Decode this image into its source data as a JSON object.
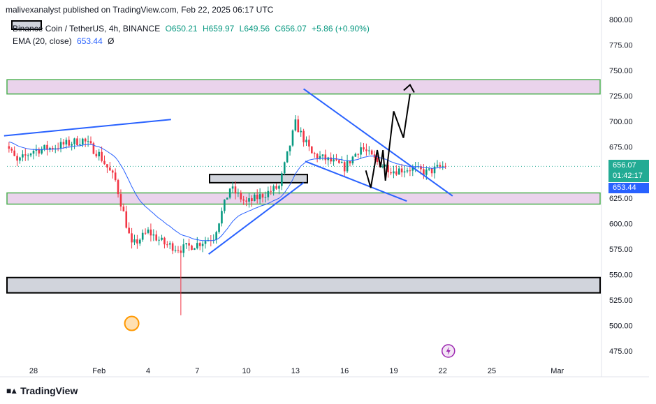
{
  "header": {
    "publisher_line": "malivexanalyst published on TradingView.com, Feb 22, 2025 06:17 UTC"
  },
  "legend": {
    "symbol": "Binance Coin / TetherUS, 4h, BINANCE",
    "open": "O650.21",
    "high": "H659.97",
    "low": "L649.56",
    "close": "C656.07",
    "change": "+5.86 (+0.90%)",
    "ema_label": "EMA (20, close)",
    "ema_value": "653.44",
    "ema_extra": "Ø"
  },
  "price_labels": {
    "last_price": "656.07",
    "countdown": "01:42:17",
    "ema_price": "653.44"
  },
  "footer": {
    "brand": "TradingView"
  },
  "colors": {
    "up": "#089981",
    "down": "#f23645",
    "ema": "#2962ff",
    "trendline": "#2962ff",
    "zone_fill": "#ead3ec",
    "zone_border": "#4caf50",
    "support_fill": "#d1d4dc",
    "projection": "#000000",
    "marker": "#ff9800",
    "flash": "#9c27b0"
  },
  "chart_data": {
    "type": "candlestick",
    "title": "Binance Coin / TetherUS, 4h, BINANCE",
    "y_axis_ticks": [
      800,
      775,
      750,
      725,
      700,
      675,
      650,
      625,
      600,
      575,
      550,
      525,
      500,
      475
    ],
    "y_tick_labels": [
      "800.00",
      "775.00",
      "750.00",
      "725.00",
      "700.00",
      "675.00",
      "650.00",
      "625.00",
      "600.00",
      "575.00",
      "550.00",
      "525.00",
      "500.00",
      "475.00"
    ],
    "ylim": [
      466,
      812
    ],
    "x_axis_labels": [
      "28",
      "Feb",
      "4",
      "7",
      "10",
      "13",
      "16",
      "19",
      "22",
      "25",
      "Mar"
    ],
    "x_axis_dates": [
      "2025-01-28",
      "2025-02-01",
      "2025-02-04",
      "2025-02-07",
      "2025-02-10",
      "2025-02-13",
      "2025-02-16",
      "2025-02-19",
      "2025-02-22",
      "2025-02-25",
      "2025-03-01"
    ],
    "candle_closes_approx": [
      {
        "date": "2025-01-26",
        "close": 686
      },
      {
        "date": "2025-01-27",
        "close": 660
      },
      {
        "date": "2025-01-28",
        "close": 672
      },
      {
        "date": "2025-01-29",
        "close": 674
      },
      {
        "date": "2025-01-30",
        "close": 678
      },
      {
        "date": "2025-01-31",
        "close": 682
      },
      {
        "date": "2025-02-01",
        "close": 668
      },
      {
        "date": "2025-02-02",
        "close": 642
      },
      {
        "date": "2025-02-03",
        "close": 578
      },
      {
        "date": "2025-02-04",
        "close": 592
      },
      {
        "date": "2025-02-05",
        "close": 580
      },
      {
        "date": "2025-02-06",
        "close": 575
      },
      {
        "date": "2025-02-07",
        "close": 580
      },
      {
        "date": "2025-02-08",
        "close": 587
      },
      {
        "date": "2025-02-09",
        "close": 635
      },
      {
        "date": "2025-02-10",
        "close": 620
      },
      {
        "date": "2025-02-11",
        "close": 628
      },
      {
        "date": "2025-02-12",
        "close": 636
      },
      {
        "date": "2025-02-13",
        "close": 698
      },
      {
        "date": "2025-02-14",
        "close": 668
      },
      {
        "date": "2025-02-15",
        "close": 662
      },
      {
        "date": "2025-02-16",
        "close": 655
      },
      {
        "date": "2025-02-17",
        "close": 675
      },
      {
        "date": "2025-02-18",
        "close": 660
      },
      {
        "date": "2025-02-19",
        "close": 652
      },
      {
        "date": "2025-02-20",
        "close": 654
      },
      {
        "date": "2025-02-21",
        "close": 650
      },
      {
        "date": "2025-02-22",
        "close": 656.07
      }
    ],
    "ema_20_last": 653.44,
    "last_price": 656.07,
    "zones": [
      {
        "kind": "resistance",
        "low": 727,
        "high": 741
      },
      {
        "kind": "support",
        "low": 619,
        "high": 630
      },
      {
        "kind": "support",
        "low": 532,
        "high": 547
      },
      {
        "kind": "breakout-box",
        "low": 640,
        "high": 648
      }
    ],
    "wick_low_marker": 502,
    "grid": false
  }
}
